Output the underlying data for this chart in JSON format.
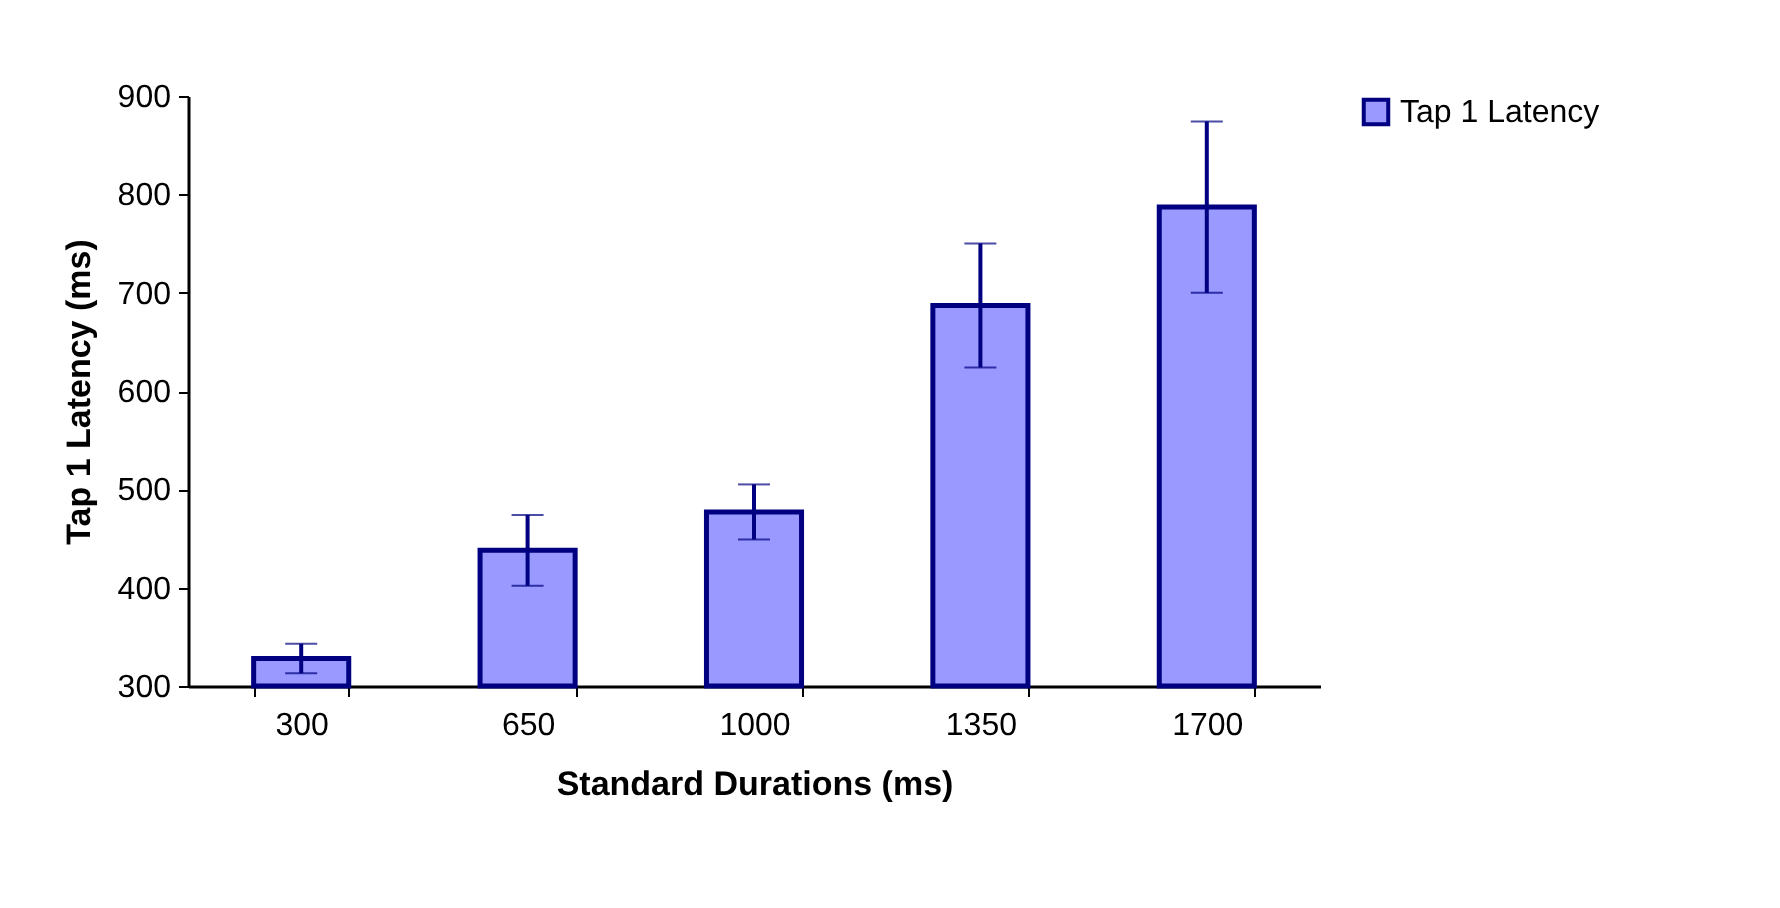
{
  "chart_data": {
    "type": "bar",
    "xlabel": "Standard Durations (ms)",
    "ylabel": "Tap 1 Latency (ms)",
    "categories": [
      "300",
      "650",
      "1000",
      "1350",
      "1700"
    ],
    "series": [
      {
        "name": "Tap 1 Latency",
        "color": "#9999ff",
        "values": [
          328,
          438,
          477,
          687,
          787
        ],
        "errors": [
          15,
          36,
          28,
          63,
          87
        ]
      }
    ],
    "ylim": [
      300,
      900
    ],
    "yticks": [
      300,
      400,
      500,
      600,
      700,
      800,
      900
    ],
    "grid": false,
    "legend": "right"
  }
}
